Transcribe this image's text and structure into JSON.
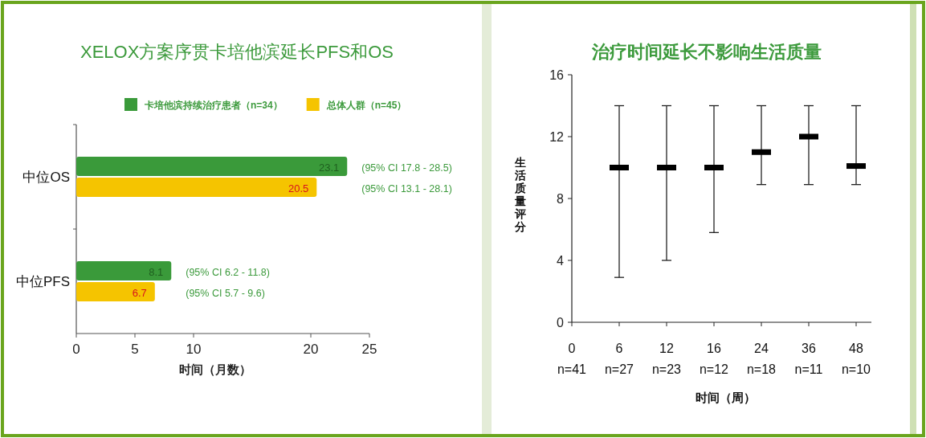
{
  "chart_data": [
    {
      "type": "bar",
      "orientation": "horizontal",
      "title": "XELOX方案序贯卡培他滨延长PFS和OS",
      "xlabel": "时间（月数）",
      "categories": [
        "中位OS",
        "中位PFS"
      ],
      "series": [
        {
          "name": "卡培他滨持续治疗患者（n=34）",
          "color": "#3a9a3a",
          "values": [
            23.1,
            8.1
          ]
        },
        {
          "name": "总体人群（n=45）",
          "color": "#f5c400",
          "values": [
            20.5,
            6.7
          ]
        }
      ],
      "xlim": [
        0,
        25
      ],
      "xticks": [
        0,
        5,
        10,
        20,
        25
      ],
      "data_labels": true,
      "legend": "top",
      "annotations": [
        "(95% CI 17.8 - 28.5)",
        "(95% CI 13.1 - 28.1)",
        "(95% CI 6.2 - 11.8)",
        "(95% CI 5.7 - 9.6)"
      ]
    },
    {
      "type": "box",
      "title": "治疗时间延长不影响生活质量",
      "xlabel": "时间（周）",
      "ylabel": "生活质量评分",
      "categories": [
        "0\nn=41",
        "6\nn=27",
        "12\nn=23",
        "16\nn=12",
        "24\nn=18",
        "36\nn=11",
        "48\nn=10"
      ],
      "boxes": [
        null,
        {
          "low": 2.9,
          "q1": 10,
          "median": 10,
          "q3": 10,
          "high": 14
        },
        {
          "low": 4,
          "q1": 10,
          "median": 10,
          "q3": 10,
          "high": 14
        },
        {
          "low": 5.8,
          "q1": 10,
          "median": 10,
          "q3": 10,
          "high": 14
        },
        {
          "low": 8.9,
          "q1": 11,
          "median": 11,
          "q3": 11,
          "high": 14
        },
        {
          "low": 8.9,
          "q1": 12,
          "median": 12,
          "q3": 12,
          "high": 14
        },
        {
          "low": 8.9,
          "q1": 10.1,
          "median": 10.1,
          "q3": 10.1,
          "high": 14
        }
      ],
      "ylim": [
        0,
        16
      ],
      "yticks": [
        0,
        4,
        8,
        12,
        16
      ]
    }
  ]
}
